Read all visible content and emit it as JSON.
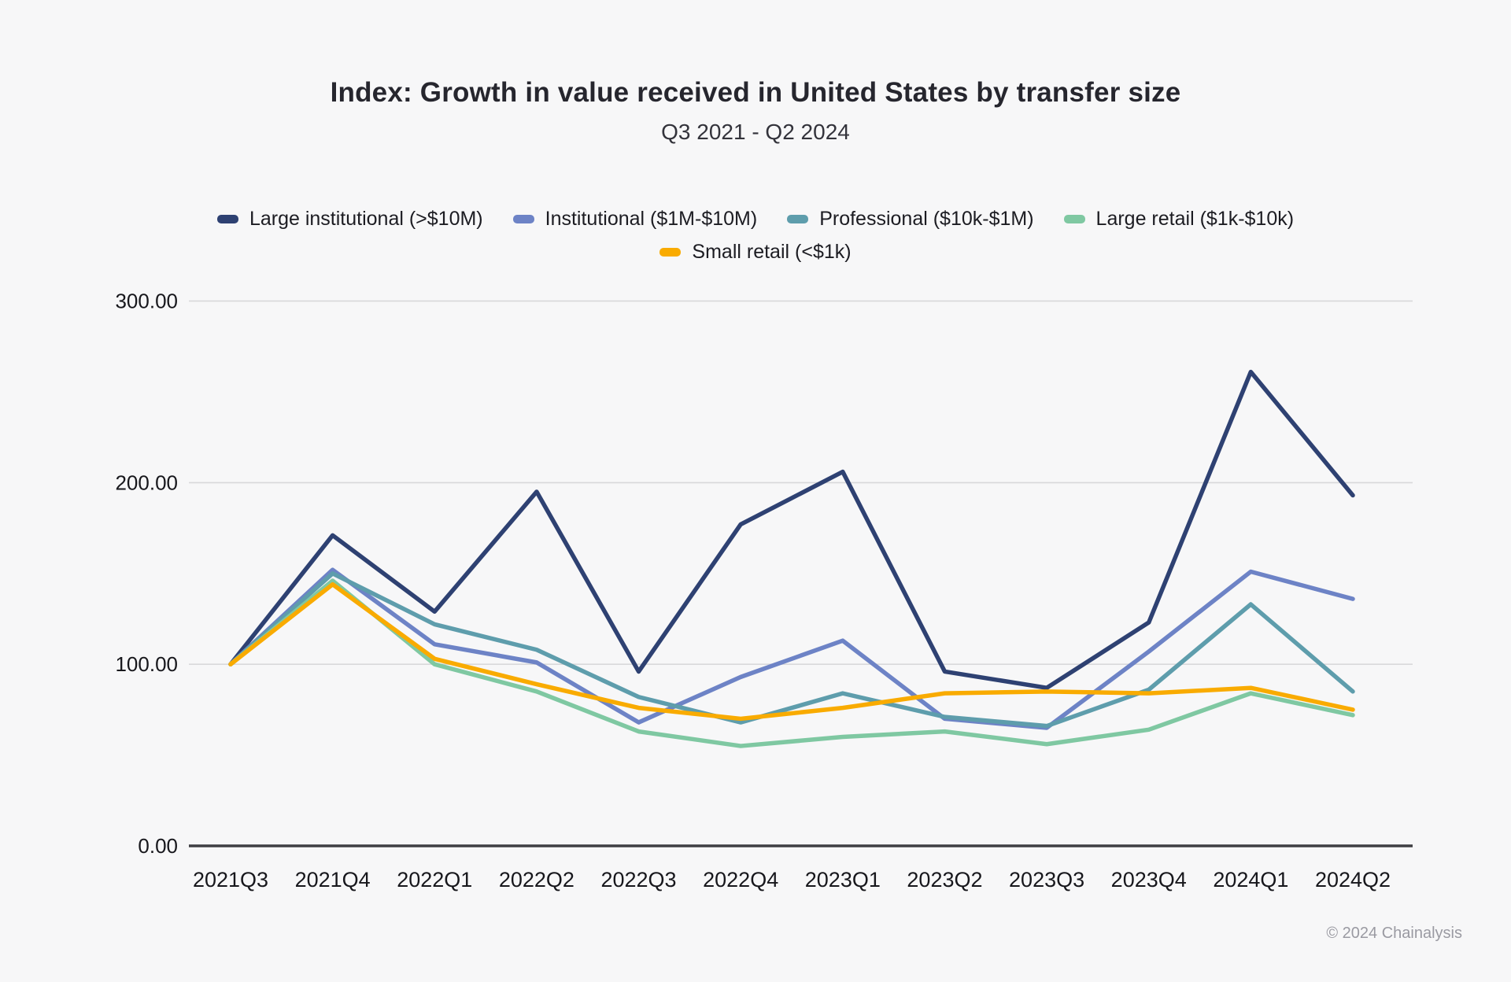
{
  "header": {
    "title": "Index: Growth in value received in United States by transfer size",
    "subtitle": "Q3 2021 - Q2 2024"
  },
  "chart_data": {
    "type": "line",
    "title": "Index: Growth in value received in United States by transfer size",
    "subtitle": "Q3 2021 - Q2 2024",
    "categories": [
      "2021Q3",
      "2021Q4",
      "2022Q1",
      "2022Q2",
      "2022Q3",
      "2022Q4",
      "2023Q1",
      "2023Q2",
      "2023Q3",
      "2023Q4",
      "2024Q1",
      "2024Q2"
    ],
    "series": [
      {
        "name": "Large institutional (>$10M)",
        "color": "#2e4172",
        "values": [
          100,
          171,
          129,
          195,
          96,
          177,
          206,
          96,
          87,
          123,
          261,
          193
        ]
      },
      {
        "name": "Institutional ($1M-$10M)",
        "color": "#6d83c6",
        "values": [
          100,
          152,
          111,
          101,
          68,
          93,
          113,
          70,
          65,
          107,
          151,
          136
        ]
      },
      {
        "name": "Professional ($10k-$1M)",
        "color": "#5e9dac",
        "values": [
          100,
          150,
          122,
          108,
          82,
          68,
          84,
          71,
          66,
          86,
          133,
          85
        ]
      },
      {
        "name": "Large retail ($1k-$10k)",
        "color": "#7fc8a2",
        "values": [
          100,
          146,
          100,
          85,
          63,
          55,
          60,
          63,
          56,
          64,
          84,
          72
        ]
      },
      {
        "name": "Small retail (<$1k)",
        "color": "#f9ab00",
        "values": [
          100,
          144,
          103,
          89,
          76,
          70,
          76,
          84,
          85,
          84,
          87,
          75
        ]
      }
    ],
    "ylim": [
      0,
      300
    ],
    "yticks": [
      {
        "value": 0,
        "label": "0.00"
      },
      {
        "value": 100,
        "label": "100.00"
      },
      {
        "value": 200,
        "label": "200.00"
      },
      {
        "value": 300,
        "label": "300.00"
      }
    ],
    "grid": "horizontal",
    "legend_position": "top",
    "colors": {
      "background": "#f7f7f8",
      "gridline": "#d8d8da",
      "axis_line": "#3f3f43",
      "tick_text": "#17171c"
    }
  },
  "footer": {
    "copyright": "© 2024 Chainalysis"
  }
}
